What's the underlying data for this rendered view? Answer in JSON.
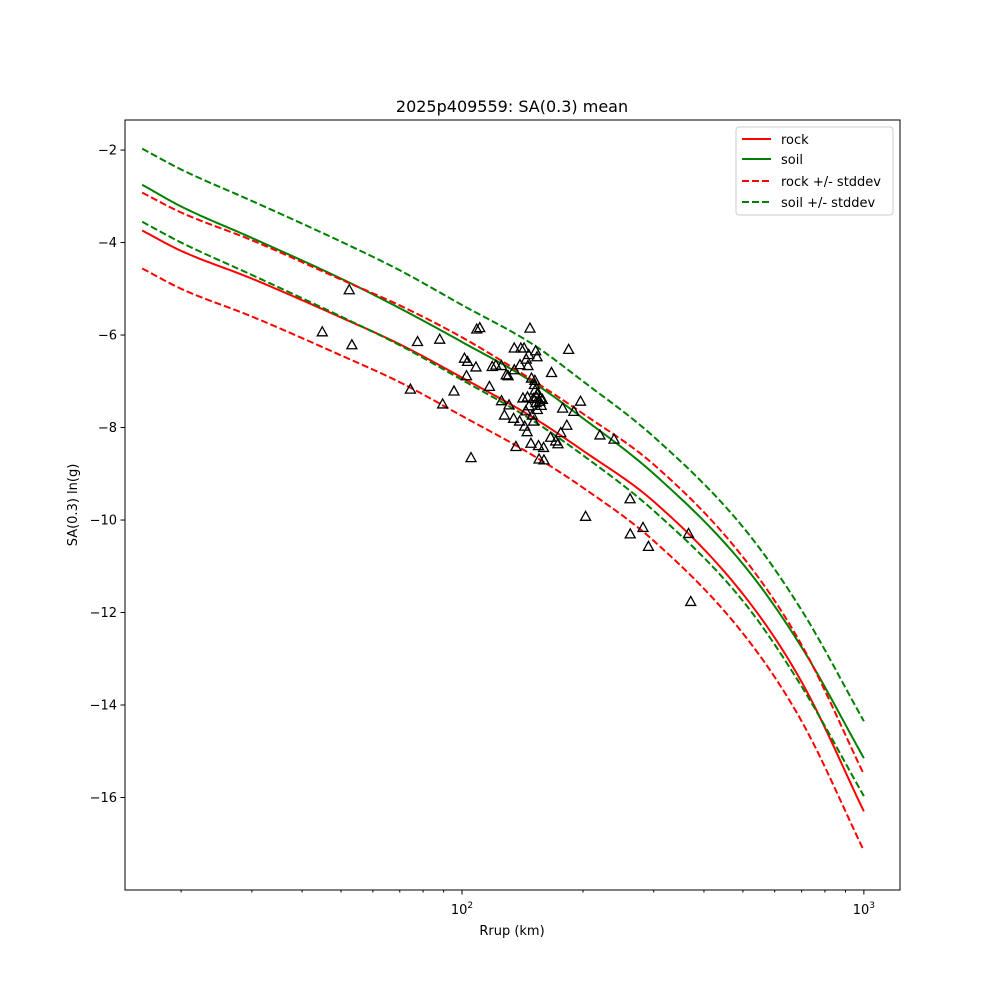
{
  "chart_data": {
    "type": "line",
    "title": "2025p409559: SA(0.3) mean",
    "xlabel": "Rrup (km)",
    "ylabel": "SA(0.3) ln(g)",
    "xscale": "log",
    "xlim": [
      14.5,
      1230
    ],
    "ylim": [
      -18.0,
      -1.35
    ],
    "x_ticks": [
      {
        "value": 100,
        "base": "10",
        "exp": "2"
      },
      {
        "value": 1000,
        "base": "10",
        "exp": "3"
      }
    ],
    "y_ticks": [
      "-16",
      "-14",
      "-12",
      "-10",
      "-8",
      "-6",
      "-4",
      "-2"
    ],
    "grid": false,
    "legend_position": "top-right",
    "colors": {
      "rock": "#ff0000",
      "soil": "#008000",
      "observations": "#000000"
    },
    "series": [
      {
        "name": "rock",
        "style": "solid",
        "color": "#ff0000",
        "x": [
          16,
          20,
          30,
          50,
          70,
          100,
          150,
          200,
          300,
          500,
          700,
          1000
        ],
        "y": [
          -3.74,
          -4.18,
          -4.78,
          -5.62,
          -6.2,
          -6.92,
          -7.78,
          -8.5,
          -9.6,
          -11.6,
          -13.5,
          -16.3
        ]
      },
      {
        "name": "soil",
        "style": "solid",
        "color": "#008000",
        "x": [
          16,
          20,
          30,
          50,
          70,
          100,
          150,
          200,
          300,
          500,
          700,
          1000
        ],
        "y": [
          -2.75,
          -3.22,
          -3.9,
          -4.78,
          -5.42,
          -6.15,
          -7.02,
          -7.8,
          -9.0,
          -10.95,
          -12.75,
          -15.15
        ]
      },
      {
        "name": "rock +/- stddev",
        "style": "dashed",
        "color": "#ff0000",
        "x": [
          16,
          20,
          30,
          50,
          70,
          100,
          150,
          200,
          300,
          500,
          700,
          1000
        ],
        "y": [
          -2.92,
          -3.35,
          -3.95,
          -4.8,
          -5.36,
          -6.05,
          -6.98,
          -7.7,
          -8.8,
          -10.8,
          -12.7,
          -15.5
        ]
      },
      {
        "name": "",
        "style": "dashed",
        "color": "#ff0000",
        "x": [
          16,
          20,
          30,
          50,
          70,
          100,
          150,
          200,
          300,
          500,
          700,
          1000
        ],
        "y": [
          -4.56,
          -5.0,
          -5.6,
          -6.44,
          -7.02,
          -7.75,
          -8.6,
          -9.3,
          -10.45,
          -12.45,
          -14.35,
          -17.15
        ]
      },
      {
        "name": "soil +/- stddev",
        "style": "dashed",
        "color": "#008000",
        "x": [
          16,
          20,
          30,
          50,
          70,
          100,
          150,
          200,
          300,
          500,
          700,
          1000
        ],
        "y": [
          -1.97,
          -2.42,
          -3.1,
          -3.98,
          -4.6,
          -5.35,
          -6.2,
          -7.0,
          -8.2,
          -10.15,
          -11.95,
          -14.35
        ]
      },
      {
        "name": "",
        "style": "dashed",
        "color": "#008000",
        "x": [
          16,
          20,
          30,
          50,
          70,
          100,
          150,
          200,
          300,
          500,
          700,
          1000
        ],
        "y": [
          -3.55,
          -4.0,
          -4.7,
          -5.6,
          -6.22,
          -6.97,
          -7.85,
          -8.6,
          -9.8,
          -11.75,
          -13.6,
          -15.97
        ]
      }
    ],
    "points": [
      {
        "x": 44.9,
        "y": -5.93
      },
      {
        "x": 52.4,
        "y": -5.02
      },
      {
        "x": 53.2,
        "y": -6.21
      },
      {
        "x": 74.4,
        "y": -7.17
      },
      {
        "x": 77.5,
        "y": -6.14
      },
      {
        "x": 88.0,
        "y": -6.09
      },
      {
        "x": 89.5,
        "y": -7.49
      },
      {
        "x": 95.5,
        "y": -7.21
      },
      {
        "x": 101.4,
        "y": -6.5
      },
      {
        "x": 102.6,
        "y": -6.88
      },
      {
        "x": 103.2,
        "y": -6.57
      },
      {
        "x": 105.3,
        "y": -8.65
      },
      {
        "x": 108.3,
        "y": -6.69
      },
      {
        "x": 108.8,
        "y": -5.87
      },
      {
        "x": 110.7,
        "y": -5.84
      },
      {
        "x": 117.0,
        "y": -7.11
      },
      {
        "x": 118.9,
        "y": -6.68
      },
      {
        "x": 121.4,
        "y": -6.65
      },
      {
        "x": 125.4,
        "y": -7.42
      },
      {
        "x": 125.4,
        "y": -6.66
      },
      {
        "x": 127.5,
        "y": -7.73
      },
      {
        "x": 128.8,
        "y": -6.86
      },
      {
        "x": 130.2,
        "y": -6.88
      },
      {
        "x": 130.9,
        "y": -7.51
      },
      {
        "x": 134.4,
        "y": -7.8
      },
      {
        "x": 134.9,
        "y": -6.28
      },
      {
        "x": 134.9,
        "y": -6.75
      },
      {
        "x": 136.2,
        "y": -8.41
      },
      {
        "x": 139.1,
        "y": -7.86
      },
      {
        "x": 139.4,
        "y": -6.64
      },
      {
        "x": 140.1,
        "y": -6.28
      },
      {
        "x": 141.8,
        "y": -7.36
      },
      {
        "x": 142.7,
        "y": -6.28
      },
      {
        "x": 143.2,
        "y": -7.97
      },
      {
        "x": 144.1,
        "y": -7.64
      },
      {
        "x": 144.5,
        "y": -6.52
      },
      {
        "x": 145.2,
        "y": -8.09
      },
      {
        "x": 145.5,
        "y": -7.34
      },
      {
        "x": 145.9,
        "y": -6.66
      },
      {
        "x": 146.5,
        "y": -6.42
      },
      {
        "x": 146.8,
        "y": -7.53
      },
      {
        "x": 147.6,
        "y": -5.85
      },
      {
        "x": 148.4,
        "y": -8.34
      },
      {
        "x": 148.9,
        "y": -6.93
      },
      {
        "x": 149.6,
        "y": -7.73
      },
      {
        "x": 150.5,
        "y": -7.37
      },
      {
        "x": 150.7,
        "y": -7.86
      },
      {
        "x": 151.4,
        "y": -7.07
      },
      {
        "x": 151.8,
        "y": -6.98
      },
      {
        "x": 152.0,
        "y": -7.19
      },
      {
        "x": 152.5,
        "y": -6.34
      },
      {
        "x": 152.8,
        "y": -7.46
      },
      {
        "x": 153.1,
        "y": -7.33
      },
      {
        "x": 153.7,
        "y": -6.47
      },
      {
        "x": 154.0,
        "y": -7.61
      },
      {
        "x": 154.4,
        "y": -7.25
      },
      {
        "x": 155.0,
        "y": -8.39
      },
      {
        "x": 155.5,
        "y": -8.68
      },
      {
        "x": 156.1,
        "y": -7.43
      },
      {
        "x": 156.9,
        "y": -7.36
      },
      {
        "x": 157.4,
        "y": -7.52
      },
      {
        "x": 158.5,
        "y": -7.39
      },
      {
        "x": 159.6,
        "y": -8.43
      },
      {
        "x": 159.9,
        "y": -8.7
      },
      {
        "x": 166.1,
        "y": -8.21
      },
      {
        "x": 167.0,
        "y": -6.81
      },
      {
        "x": 171.0,
        "y": -8.29
      },
      {
        "x": 173.3,
        "y": -8.35
      },
      {
        "x": 176.1,
        "y": -8.11
      },
      {
        "x": 178.0,
        "y": -7.58
      },
      {
        "x": 182.3,
        "y": -7.95
      },
      {
        "x": 184.2,
        "y": -6.31
      },
      {
        "x": 189.8,
        "y": -7.65
      },
      {
        "x": 197.2,
        "y": -7.43
      },
      {
        "x": 203.0,
        "y": -9.92
      },
      {
        "x": 220.4,
        "y": -8.16
      },
      {
        "x": 238.9,
        "y": -8.25
      },
      {
        "x": 261.9,
        "y": -9.54
      },
      {
        "x": 262.2,
        "y": -10.3
      },
      {
        "x": 282.1,
        "y": -10.16
      },
      {
        "x": 291.0,
        "y": -10.57
      },
      {
        "x": 366.2,
        "y": -10.29
      },
      {
        "x": 370.8,
        "y": -11.76
      }
    ]
  }
}
